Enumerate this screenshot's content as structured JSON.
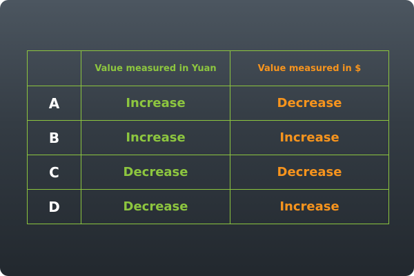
{
  "table": {
    "headers": {
      "corner": "",
      "yuan": "Value measured in Yuan",
      "usd": "Value measured in $"
    },
    "rows": [
      {
        "label": "A",
        "yuan": "Increase",
        "usd": "Decrease"
      },
      {
        "label": "B",
        "yuan": "Increase",
        "usd": "Increase"
      },
      {
        "label": "C",
        "yuan": "Decrease",
        "usd": "Decrease"
      },
      {
        "label": "D",
        "yuan": "Decrease",
        "usd": "Increase"
      }
    ]
  },
  "colors": {
    "grid_line": "#8dc63f",
    "yuan_text": "#8dc63f",
    "usd_text": "#f7941d",
    "label_text": "#ffffff",
    "background_top": "#4c5660",
    "background_bottom": "#22282e"
  }
}
